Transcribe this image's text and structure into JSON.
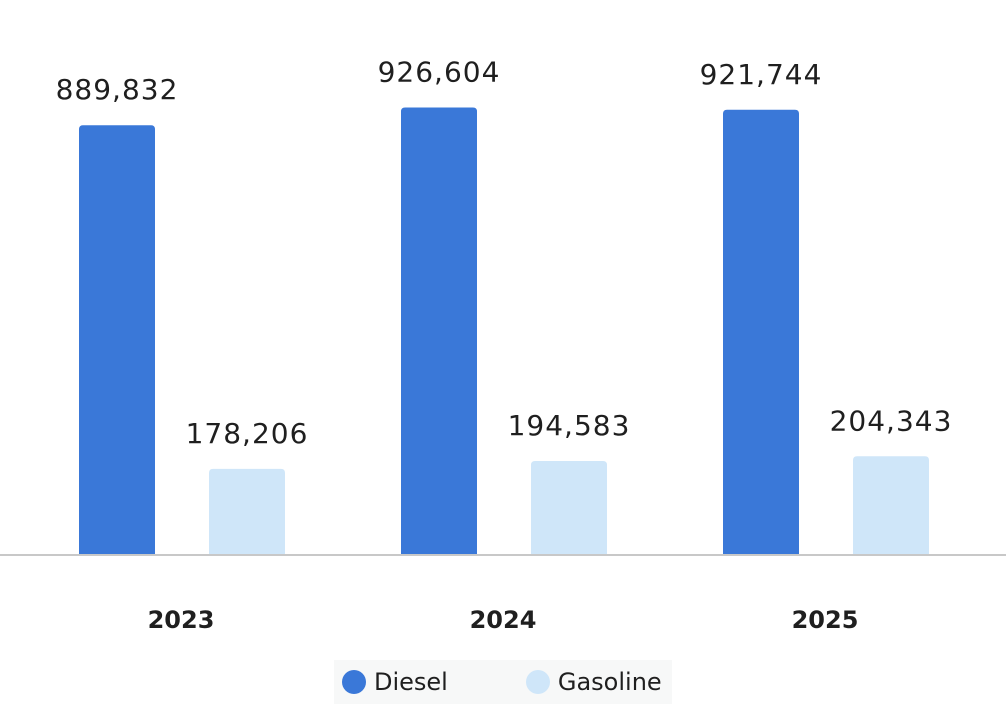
{
  "chart_data": {
    "type": "bar",
    "categories": [
      "2023",
      "2024",
      "2025"
    ],
    "series": [
      {
        "name": "Diesel",
        "values": [
          889832,
          926604,
          921744
        ],
        "color": "#3a78d8",
        "value_labels": [
          "889,832",
          "926,604",
          "921,744"
        ]
      },
      {
        "name": "Gasoline",
        "values": [
          178206,
          194583,
          204343
        ],
        "color": "#cfe6f9",
        "value_labels": [
          "178,206",
          "194,583",
          "204,343"
        ]
      }
    ],
    "title": "",
    "xlabel": "",
    "ylabel": "",
    "ylim": [
      0,
      1000000
    ],
    "grid": false,
    "legend_position": "bottom"
  },
  "legend": {
    "items": [
      {
        "label": "Diesel",
        "color": "#3a78d8"
      },
      {
        "label": "Gasoline",
        "color": "#cfe6f9"
      }
    ]
  }
}
